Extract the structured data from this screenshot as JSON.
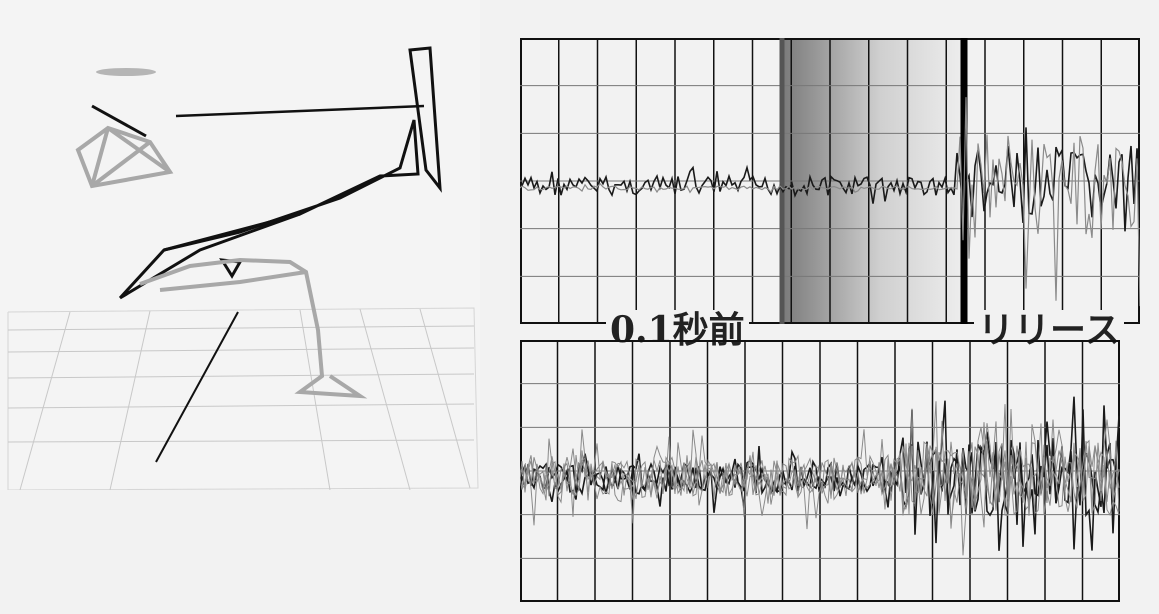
{
  "labels": {
    "before": "0.1秒前",
    "release": "リリース"
  },
  "colors": {
    "background": "#f2f2f2",
    "line_dark": "#1a1a1a",
    "line_gray": "#9a9a9a",
    "grid": "#111111",
    "shade": "#8a8a8a"
  }
}
